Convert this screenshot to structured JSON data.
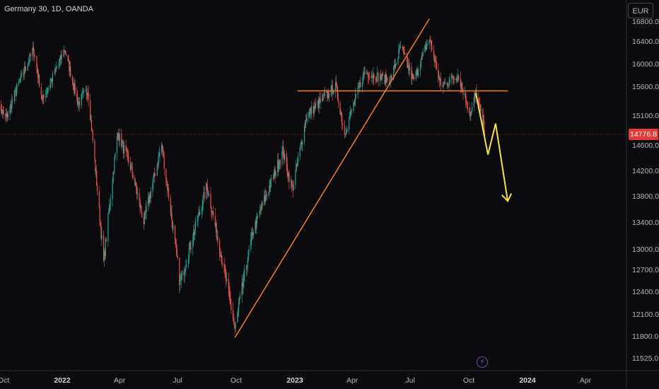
{
  "header": {
    "symbol_title": "Germany 30, 1D, OANDA",
    "currency": "EUR"
  },
  "colors": {
    "background": "#0b0b0e",
    "up": "#26a69a",
    "down": "#ef5350",
    "trendline": "#f57c2a",
    "projection": "#f5e04a",
    "price_line": "#e53935"
  },
  "icons": {
    "replay": "lightning-icon"
  },
  "chart_data": {
    "type": "candlestick",
    "title": "Germany 30, 1D, OANDA",
    "currency": "EUR",
    "ylim": [
      11400,
      16900
    ],
    "y_ticks": [
      11525.0,
      11800.0,
      12100.0,
      12400.0,
      12700.0,
      13000.0,
      13400.0,
      13800.0,
      14200.0,
      14600.0,
      15100.0,
      15600.0,
      16000.0,
      16400.0,
      16800.0
    ],
    "x_ticks": [
      {
        "label": "Oct",
        "date": "2021-10-01"
      },
      {
        "label": "2022",
        "date": "2022-01-01",
        "year": true
      },
      {
        "label": "Apr",
        "date": "2022-04-01"
      },
      {
        "label": "Jul",
        "date": "2022-07-01"
      },
      {
        "label": "Oct",
        "date": "2022-10-01"
      },
      {
        "label": "2023",
        "date": "2023-01-01",
        "year": true
      },
      {
        "label": "Apr",
        "date": "2023-04-01"
      },
      {
        "label": "Jul",
        "date": "2023-07-01"
      },
      {
        "label": "Oct",
        "date": "2023-10-01"
      },
      {
        "label": "2024",
        "date": "2024-01-01",
        "year": true
      },
      {
        "label": "Apr",
        "date": "2024-04-01"
      }
    ],
    "last_price": 14776.8,
    "price_path": [
      {
        "date": "2021-09-20",
        "close": 15300
      },
      {
        "date": "2021-10-05",
        "close": 15050
      },
      {
        "date": "2021-10-25",
        "close": 15650
      },
      {
        "date": "2021-11-17",
        "close": 16250
      },
      {
        "date": "2021-12-01",
        "close": 15350
      },
      {
        "date": "2022-01-05",
        "close": 16250
      },
      {
        "date": "2022-01-26",
        "close": 15300
      },
      {
        "date": "2022-02-10",
        "close": 15550
      },
      {
        "date": "2022-03-07",
        "close": 12800
      },
      {
        "date": "2022-03-29",
        "close": 14800
      },
      {
        "date": "2022-04-20",
        "close": 14200
      },
      {
        "date": "2022-05-09",
        "close": 13400
      },
      {
        "date": "2022-06-06",
        "close": 14600
      },
      {
        "date": "2022-07-05",
        "close": 12500
      },
      {
        "date": "2022-08-16",
        "close": 13950
      },
      {
        "date": "2022-09-29",
        "close": 11900
      },
      {
        "date": "2022-10-27",
        "close": 13250
      },
      {
        "date": "2022-12-13",
        "close": 14500
      },
      {
        "date": "2022-12-28",
        "close": 13900
      },
      {
        "date": "2023-01-20",
        "close": 15100
      },
      {
        "date": "2023-03-06",
        "close": 15600
      },
      {
        "date": "2023-03-20",
        "close": 14800
      },
      {
        "date": "2023-04-20",
        "close": 15850
      },
      {
        "date": "2023-05-31",
        "close": 15700
      },
      {
        "date": "2023-06-16",
        "close": 16300
      },
      {
        "date": "2023-07-06",
        "close": 15700
      },
      {
        "date": "2023-07-31",
        "close": 16450
      },
      {
        "date": "2023-08-18",
        "close": 15600
      },
      {
        "date": "2023-09-14",
        "close": 15800
      },
      {
        "date": "2023-10-04",
        "close": 15100
      },
      {
        "date": "2023-10-12",
        "close": 15500
      },
      {
        "date": "2023-10-27",
        "close": 14776.8
      }
    ],
    "annotations": [
      {
        "type": "trendline",
        "color": "#f57c2a",
        "points": [
          {
            "date": "2022-09-29",
            "price": 11780
          },
          {
            "date": "2023-07-31",
            "price": 16850
          }
        ]
      },
      {
        "type": "horizontal_segment",
        "color": "#f57c2a",
        "price": 15520,
        "from": "2023-01-05",
        "to": "2023-12-01"
      },
      {
        "type": "projection_arrow",
        "color": "#f5e04a",
        "points": [
          {
            "date": "2023-10-12",
            "price": 15480
          },
          {
            "date": "2023-10-31",
            "price": 14450
          },
          {
            "date": "2023-11-12",
            "price": 14960
          },
          {
            "date": "2023-12-01",
            "price": 13720
          }
        ]
      }
    ]
  }
}
